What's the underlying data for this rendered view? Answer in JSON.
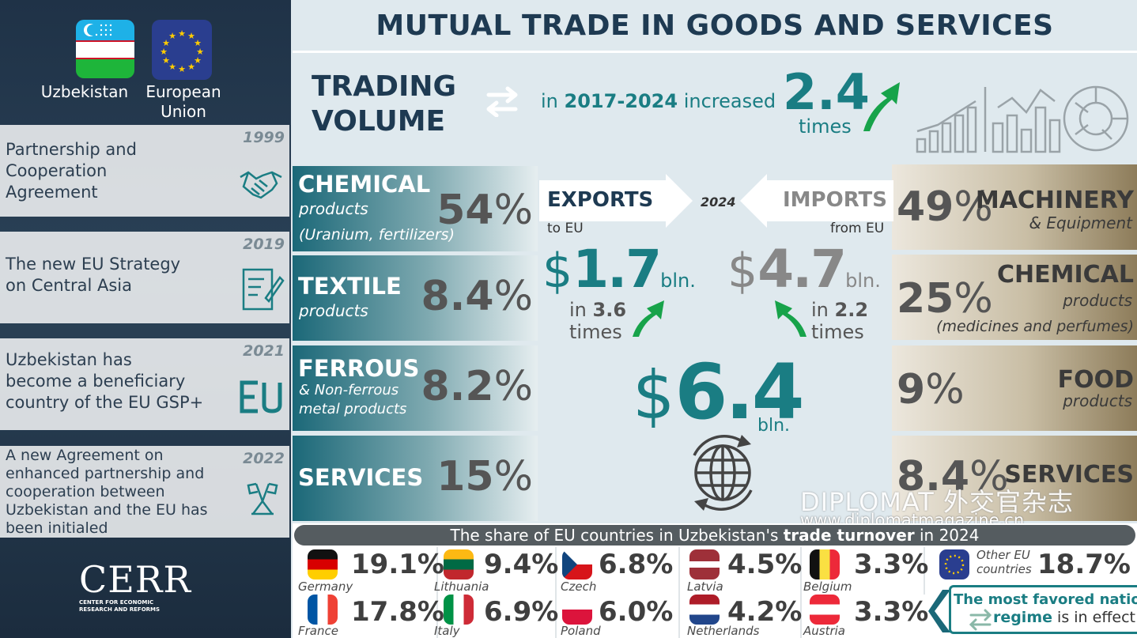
{
  "sidebar": {
    "countries": [
      "Uzbekistan",
      "European Union"
    ],
    "milestones": [
      {
        "year": "1999",
        "text": [
          "Partnership and",
          "Cooperation",
          "Agreement"
        ],
        "icon": "handshake-icon"
      },
      {
        "year": "2019",
        "text": [
          "The new EU Strategy",
          "on Central Asia"
        ],
        "icon": "document-pen-icon"
      },
      {
        "year": "2021",
        "text": [
          "Uzbekistan has",
          "become a beneficiary",
          "country of the EU GSP+"
        ],
        "icon": "eu-letters-icon"
      },
      {
        "year": "2022",
        "text": [
          "A new Agreement on",
          "enhanced partnership and",
          "cooperation between",
          "Uzbekistan and the EU has",
          "been initialed"
        ],
        "icon": "flags-stand-icon"
      }
    ],
    "logo": {
      "name": "CERR",
      "line1": "CENTER FOR ECONOMIC",
      "line2": "RESEARCH AND REFORMS"
    }
  },
  "title": "MUTUAL TRADE IN GOODS AND SERVICES",
  "trading": {
    "l1": "TRADING",
    "l2": "VOLUME",
    "in": "in ",
    "period": "2017-2024",
    "increased": " increased",
    "factor": "2.4",
    "times": "times"
  },
  "exports": {
    "label": "EXPORTS",
    "to": "to EU",
    "dollar": "$",
    "value": "1.7",
    "unit": "bln.",
    "in": "in ",
    "growth": "3.6",
    "times": "times"
  },
  "imports": {
    "label": "IMPORTS",
    "from": "from EU",
    "dollar": "$",
    "value": "4.7",
    "unit": "bln.",
    "in": "in ",
    "growth": "2.2",
    "times": "times"
  },
  "year": "2024",
  "total": {
    "dollar": "$",
    "value": "6.4",
    "unit": "bln."
  },
  "export_sectors": [
    {
      "title": "CHEMICAL",
      "sub1": "products",
      "sub2": "(Uranium, fertilizers)",
      "pct": "54",
      "sign": "%"
    },
    {
      "title": "TEXTILE",
      "sub1": "products",
      "sub2": "",
      "pct": "8.4",
      "sign": "%"
    },
    {
      "title": "FERROUS",
      "sub1": "& Non-ferrous",
      "sub2": "metal products",
      "pct": "8.2",
      "sign": "%"
    },
    {
      "title": "SERVICES",
      "sub1": "",
      "sub2": "",
      "pct": "15",
      "sign": "%"
    }
  ],
  "import_sectors": [
    {
      "title": "MACHINERY",
      "sub1": "& Equipment",
      "sub2": "",
      "pct": "49",
      "sign": "%"
    },
    {
      "title": "CHEMICAL",
      "sub1": "products",
      "sub2": "(medicines and perfumes)",
      "pct": "25",
      "sign": "%"
    },
    {
      "title": "FOOD",
      "sub1": "products",
      "sub2": "",
      "pct": "9",
      "sign": "%"
    },
    {
      "title": "SERVICES",
      "sub1": "",
      "sub2": "",
      "pct": "8.4",
      "sign": "%"
    }
  ],
  "watermark": {
    "l1": "DIPLOMAT 外交官杂志",
    "l2": "www.diplomatmagazine.cn"
  },
  "share": {
    "before": "The share of EU countries in Uzbekistan's ",
    "bold": "trade turnover",
    "after": " in 2024"
  },
  "countries": [
    {
      "name": "Germany",
      "pct": "19.1%",
      "colors": [
        "#111111",
        "#d80000",
        "#ffce00"
      ],
      "dir": "h"
    },
    {
      "name": "Lithuania",
      "pct": "9.4%",
      "colors": [
        "#fdb913",
        "#006a44",
        "#c1272d"
      ],
      "dir": "h"
    },
    {
      "name": "Czech",
      "pct": "6.8%",
      "colors": [
        "#ffffff",
        "#d7141a",
        "#11457e"
      ],
      "dir": "cz"
    },
    {
      "name": "Latvia",
      "pct": "4.5%",
      "colors": [
        "#9e3039",
        "#ffffff",
        "#9e3039"
      ],
      "dir": "lv"
    },
    {
      "name": "Belgium",
      "pct": "3.3%",
      "colors": [
        "#111111",
        "#fae042",
        "#ed2939"
      ],
      "dir": "v"
    },
    {
      "name": "France",
      "pct": "17.8%",
      "colors": [
        "#0055a4",
        "#ffffff",
        "#ef4135"
      ],
      "dir": "v"
    },
    {
      "name": "Italy",
      "pct": "6.9%",
      "colors": [
        "#009246",
        "#ffffff",
        "#ce2b37"
      ],
      "dir": "v"
    },
    {
      "name": "Poland",
      "pct": "6.0%",
      "colors": [
        "#ffffff",
        "#dc143c"
      ],
      "dir": "h2"
    },
    {
      "name": "Netherlands",
      "pct": "4.2%",
      "colors": [
        "#ae1c28",
        "#ffffff",
        "#21468b"
      ],
      "dir": "h"
    },
    {
      "name": "Austria",
      "pct": "3.3%",
      "colors": [
        "#ed2939",
        "#ffffff",
        "#ed2939"
      ],
      "dir": "h"
    }
  ],
  "other": {
    "l1": "Other EU",
    "l2": "countries",
    "pct": "18.7%"
  },
  "mfn": {
    "l1": "The most favored nation",
    "bold": "regime",
    "rest": " is in effect"
  }
}
